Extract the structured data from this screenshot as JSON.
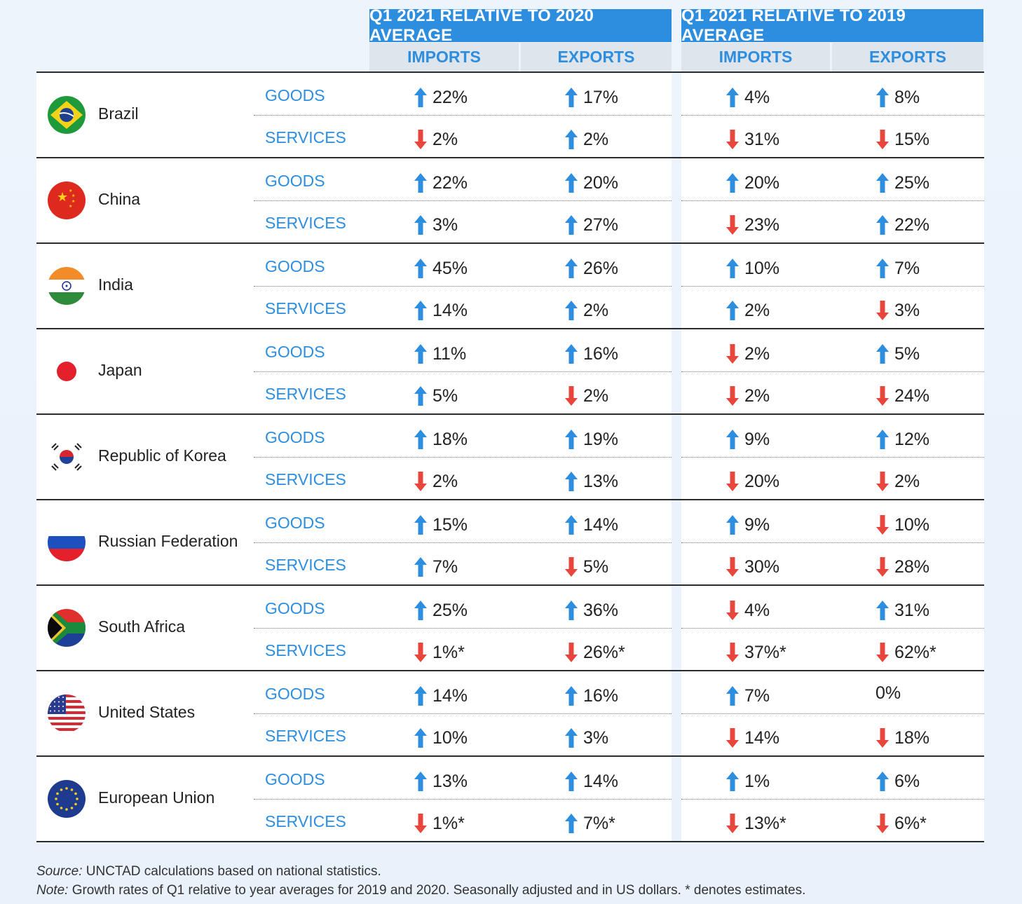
{
  "header": {
    "group1": "Q1 2021 RELATIVE TO 2020 AVERAGE",
    "group2": "Q1 2021 RELATIVE TO 2019 AVERAGE",
    "imports": "IMPORTS",
    "exports": "EXPORTS"
  },
  "categories": {
    "goods": "GOODS",
    "services": "SERVICES"
  },
  "colors": {
    "accent": "#2d8ee0",
    "up": "#2d8ee0",
    "down": "#e8453c",
    "subheader_bg": "#dfe5ec"
  },
  "chart_data": {
    "type": "table",
    "columns": [
      "Imports vs 2020 avg",
      "Exports vs 2020 avg",
      "Imports vs 2019 avg",
      "Exports vs 2019 avg"
    ],
    "rows": [
      {
        "country": "Brazil",
        "flag": "brazil-flag-icon",
        "goods": [
          {
            "v": "22%",
            "d": "up"
          },
          {
            "v": "17%",
            "d": "up"
          },
          {
            "v": "4%",
            "d": "up"
          },
          {
            "v": "8%",
            "d": "up"
          }
        ],
        "services": [
          {
            "v": "2%",
            "d": "down"
          },
          {
            "v": "2%",
            "d": "up"
          },
          {
            "v": "31%",
            "d": "down"
          },
          {
            "v": "15%",
            "d": "down"
          }
        ]
      },
      {
        "country": "China",
        "flag": "china-flag-icon",
        "goods": [
          {
            "v": "22%",
            "d": "up"
          },
          {
            "v": "20%",
            "d": "up"
          },
          {
            "v": "20%",
            "d": "up"
          },
          {
            "v": "25%",
            "d": "up"
          }
        ],
        "services": [
          {
            "v": "3%",
            "d": "up"
          },
          {
            "v": "27%",
            "d": "up"
          },
          {
            "v": "23%",
            "d": "down"
          },
          {
            "v": "22%",
            "d": "up"
          }
        ]
      },
      {
        "country": "India",
        "flag": "india-flag-icon",
        "goods": [
          {
            "v": "45%",
            "d": "up"
          },
          {
            "v": "26%",
            "d": "up"
          },
          {
            "v": "10%",
            "d": "up"
          },
          {
            "v": "7%",
            "d": "up"
          }
        ],
        "services": [
          {
            "v": "14%",
            "d": "up"
          },
          {
            "v": "2%",
            "d": "up"
          },
          {
            "v": "2%",
            "d": "up"
          },
          {
            "v": "3%",
            "d": "down"
          }
        ]
      },
      {
        "country": "Japan",
        "flag": "japan-flag-icon",
        "goods": [
          {
            "v": "11%",
            "d": "up"
          },
          {
            "v": "16%",
            "d": "up"
          },
          {
            "v": "2%",
            "d": "down"
          },
          {
            "v": "5%",
            "d": "up"
          }
        ],
        "services": [
          {
            "v": "5%",
            "d": "up"
          },
          {
            "v": "2%",
            "d": "down"
          },
          {
            "v": "2%",
            "d": "down"
          },
          {
            "v": "24%",
            "d": "down"
          }
        ]
      },
      {
        "country": "Republic of Korea",
        "flag": "korea-flag-icon",
        "goods": [
          {
            "v": "18%",
            "d": "up"
          },
          {
            "v": "19%",
            "d": "up"
          },
          {
            "v": "9%",
            "d": "up"
          },
          {
            "v": "12%",
            "d": "up"
          }
        ],
        "services": [
          {
            "v": "2%",
            "d": "down"
          },
          {
            "v": "13%",
            "d": "up"
          },
          {
            "v": "20%",
            "d": "down"
          },
          {
            "v": "2%",
            "d": "down"
          }
        ]
      },
      {
        "country": "Russian Federation",
        "flag": "russia-flag-icon",
        "goods": [
          {
            "v": "15%",
            "d": "up"
          },
          {
            "v": "14%",
            "d": "up"
          },
          {
            "v": "9%",
            "d": "up"
          },
          {
            "v": "10%",
            "d": "down"
          }
        ],
        "services": [
          {
            "v": "7%",
            "d": "up"
          },
          {
            "v": "5%",
            "d": "down"
          },
          {
            "v": "30%",
            "d": "down"
          },
          {
            "v": "28%",
            "d": "down"
          }
        ]
      },
      {
        "country": "South Africa",
        "flag": "south-africa-flag-icon",
        "goods": [
          {
            "v": "25%",
            "d": "up"
          },
          {
            "v": "36%",
            "d": "up"
          },
          {
            "v": "4%",
            "d": "down"
          },
          {
            "v": "31%",
            "d": "up"
          }
        ],
        "services": [
          {
            "v": "1%*",
            "d": "down"
          },
          {
            "v": "26%*",
            "d": "down"
          },
          {
            "v": "37%*",
            "d": "down"
          },
          {
            "v": "62%*",
            "d": "down"
          }
        ]
      },
      {
        "country": "United States",
        "flag": "us-flag-icon",
        "goods": [
          {
            "v": "14%",
            "d": "up"
          },
          {
            "v": "16%",
            "d": "up"
          },
          {
            "v": "7%",
            "d": "up"
          },
          {
            "v": "0%",
            "d": "none"
          }
        ],
        "services": [
          {
            "v": "10%",
            "d": "up"
          },
          {
            "v": "3%",
            "d": "up"
          },
          {
            "v": "14%",
            "d": "down"
          },
          {
            "v": "18%",
            "d": "down"
          }
        ]
      },
      {
        "country": "European Union",
        "flag": "eu-flag-icon",
        "goods": [
          {
            "v": "13%",
            "d": "up"
          },
          {
            "v": "14%",
            "d": "up"
          },
          {
            "v": "1%",
            "d": "up"
          },
          {
            "v": "6%",
            "d": "up"
          }
        ],
        "services": [
          {
            "v": "1%*",
            "d": "down"
          },
          {
            "v": "7%*",
            "d": "up"
          },
          {
            "v": "13%*",
            "d": "down"
          },
          {
            "v": "6%*",
            "d": "down"
          }
        ]
      }
    ]
  },
  "footer": {
    "source_label": "Source:",
    "source_text": " UNCTAD calculations based on national statistics.",
    "note_label": "Note:",
    "note_text": " Growth rates of Q1 relative to year averages for 2019 and 2020. Seasonally adjusted and in US dollars.  * denotes estimates."
  }
}
